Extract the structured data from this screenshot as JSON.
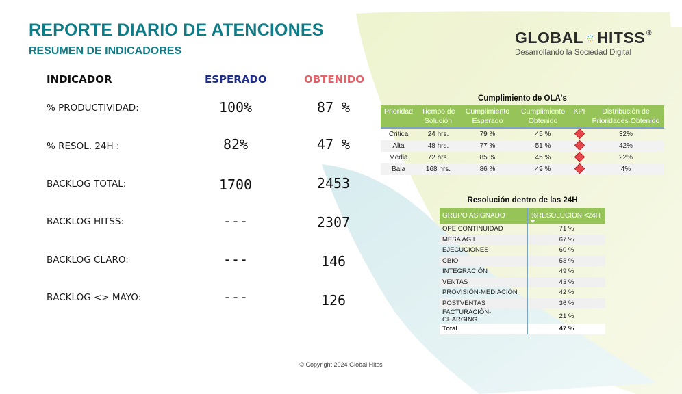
{
  "header": {
    "title": "REPORTE DIARIO DE ATENCIONES",
    "subtitle": "RESUMEN DE INDICADORES"
  },
  "logo": {
    "name_left": "GLOBAL",
    "name_right": "HITSS",
    "registered": "®",
    "tagline": "Desarrollando la Sociedad Digital",
    "icon": "globe-icon"
  },
  "colors": {
    "title": "#0e7c86",
    "esperado": "#1f2d8a",
    "obtenido": "#e0636b",
    "table_header": "#97c459",
    "kpi_diamond": "#e5484d"
  },
  "kpi_panel": {
    "col_indicador": "INDICADOR",
    "col_esperado": "ESPERADO",
    "col_obtenido": "OBTENIDO",
    "rows": [
      {
        "label": "% PRODUCTIVIDAD:",
        "esperado": "100%",
        "obtenido": "87 %"
      },
      {
        "label": "% RESOL. 24H :",
        "esperado": "82%",
        "obtenido": "47 %"
      },
      {
        "label": "BACKLOG TOTAL:",
        "esperado": "1700",
        "obtenido": "2453"
      },
      {
        "label": "BACKLOG HITSS:",
        "esperado": "---",
        "obtenido": "2307"
      },
      {
        "label": "BACKLOG CLARO:",
        "esperado": "---",
        "obtenido": "146"
      },
      {
        "label": "BACKLOG <> MAYO:",
        "esperado": "---",
        "obtenido": "126"
      }
    ]
  },
  "ola_table": {
    "title": "Cumplimiento de OLA's",
    "headers": {
      "prioridad": "Prioridad",
      "tiempo": "Tiempo de Solución",
      "esperado": "Cumplimiento Esperado",
      "obtenido": "Cumplimiento Obtenido",
      "kpi": "KPI",
      "distribucion": "Distribución de Prioridades Obtenido"
    },
    "rows": [
      {
        "prioridad": "Critica",
        "tiempo": "24 hrs.",
        "esperado": "79 %",
        "obtenido": "45 %",
        "kpi_icon": "red-diamond-icon",
        "distribucion": "32%"
      },
      {
        "prioridad": "Alta",
        "tiempo": "48 hrs.",
        "esperado": "77 %",
        "obtenido": "51 %",
        "kpi_icon": "red-diamond-icon",
        "distribucion": "42%"
      },
      {
        "prioridad": "Media",
        "tiempo": "72 hrs.",
        "esperado": "85 %",
        "obtenido": "45 %",
        "kpi_icon": "red-diamond-icon",
        "distribucion": "22%"
      },
      {
        "prioridad": "Baja",
        "tiempo": "168 hrs.",
        "esperado": "86 %",
        "obtenido": "49 %",
        "kpi_icon": "red-diamond-icon",
        "distribucion": "4%"
      }
    ]
  },
  "res_table": {
    "title": "Resolución dentro de las 24H",
    "headers": {
      "grupo": "GRUPO ASIGNADO",
      "resolucion": "%RESOLUCION <24H"
    },
    "sort_icon": "sort-descending-icon",
    "rows": [
      {
        "grupo": "OPE CONTINUIDAD",
        "valor": "71 %"
      },
      {
        "grupo": "MESA AGIL",
        "valor": "67 %"
      },
      {
        "grupo": "EJECUCIONES",
        "valor": "60 %"
      },
      {
        "grupo": "CBIO",
        "valor": "53 %"
      },
      {
        "grupo": "INTEGRACIÓN",
        "valor": "49 %"
      },
      {
        "grupo": "VENTAS",
        "valor": "43 %"
      },
      {
        "grupo": "PROVISIÓN-MEDIACIÓN",
        "valor": "42 %"
      },
      {
        "grupo": "POSTVENTAS",
        "valor": "36 %"
      },
      {
        "grupo": "FACTURACIÓN-CHARGING",
        "valor": "21 %"
      }
    ],
    "total": {
      "grupo": "Total",
      "valor": "47 %"
    }
  },
  "footer": {
    "copyright": "© Copyright 2024 Global Hitss"
  }
}
